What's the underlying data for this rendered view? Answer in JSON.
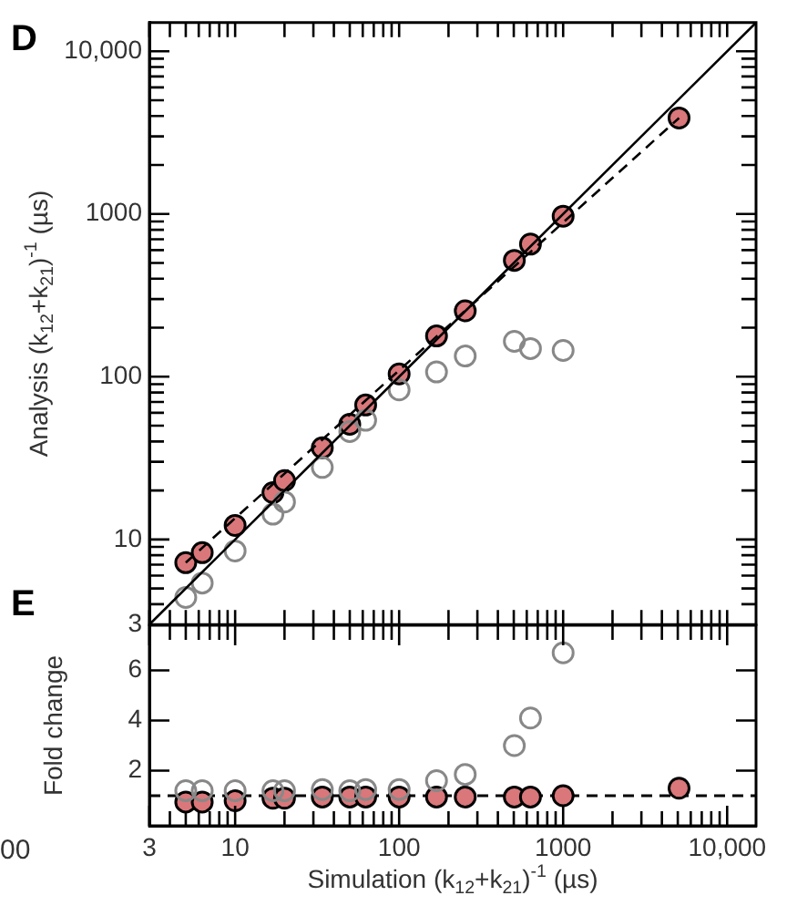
{
  "chart_data": [
    {
      "type": "scatter",
      "ylabel": "Analysis (k$_{12}$+k$_{21}$)$^{-1}$ (µs)",
      "annotations": [
        "D"
      ],
      "log": "xy",
      "grid": false,
      "legend": false,
      "tick_labels": "y",
      "xlim": [
        3,
        15000
      ],
      "ylim": [
        3,
        15000
      ],
      "xticks": [
        {
          "value": 3,
          "label": null
        },
        {
          "value": 4,
          "label": null
        },
        {
          "value": 5,
          "label": null
        },
        {
          "value": 6,
          "label": null
        },
        {
          "value": 7,
          "label": null
        },
        {
          "value": 8,
          "label": null
        },
        {
          "value": 9,
          "label": null
        },
        {
          "value": 10,
          "label": null
        },
        {
          "value": 20,
          "label": null
        },
        {
          "value": 30,
          "label": null
        },
        {
          "value": 40,
          "label": null
        },
        {
          "value": 50,
          "label": null
        },
        {
          "value": 60,
          "label": null
        },
        {
          "value": 70,
          "label": null
        },
        {
          "value": 80,
          "label": null
        },
        {
          "value": 90,
          "label": null
        },
        {
          "value": 100,
          "label": null
        },
        {
          "value": 200,
          "label": null
        },
        {
          "value": 300,
          "label": null
        },
        {
          "value": 400,
          "label": null
        },
        {
          "value": 500,
          "label": null
        },
        {
          "value": 600,
          "label": null
        },
        {
          "value": 700,
          "label": null
        },
        {
          "value": 800,
          "label": null
        },
        {
          "value": 900,
          "label": null
        },
        {
          "value": 1000,
          "label": null
        },
        {
          "value": 2000,
          "label": null
        },
        {
          "value": 3000,
          "label": null
        },
        {
          "value": 4000,
          "label": null
        },
        {
          "value": 5000,
          "label": null
        },
        {
          "value": 6000,
          "label": null
        },
        {
          "value": 7000,
          "label": null
        },
        {
          "value": 8000,
          "label": null
        },
        {
          "value": 9000,
          "label": null
        },
        {
          "value": 10000,
          "label": null
        }
      ],
      "yticks": [
        3,
        {
          "value": 4,
          "label": null
        },
        {
          "value": 5,
          "label": null
        },
        {
          "value": 6,
          "label": null
        },
        {
          "value": 7,
          "label": null
        },
        {
          "value": 8,
          "label": null
        },
        {
          "value": 9,
          "label": null
        },
        10,
        {
          "value": 20,
          "label": null
        },
        {
          "value": 30,
          "label": null
        },
        {
          "value": 40,
          "label": null
        },
        {
          "value": 50,
          "label": null
        },
        {
          "value": 60,
          "label": null
        },
        {
          "value": 70,
          "label": null
        },
        {
          "value": 80,
          "label": null
        },
        {
          "value": 90,
          "label": null
        },
        100,
        {
          "value": 200,
          "label": null
        },
        {
          "value": 300,
          "label": null
        },
        {
          "value": 400,
          "label": null
        },
        {
          "value": 500,
          "label": null
        },
        {
          "value": 600,
          "label": null
        },
        {
          "value": 700,
          "label": null
        },
        {
          "value": 800,
          "label": null
        },
        {
          "value": 900,
          "label": null
        },
        1000,
        {
          "value": 2000,
          "label": null
        },
        {
          "value": 3000,
          "label": null
        },
        {
          "value": 4000,
          "label": null
        },
        {
          "value": 5000,
          "label": null
        },
        {
          "value": 6000,
          "label": null
        },
        {
          "value": 7000,
          "label": null
        },
        {
          "value": 8000,
          "label": null
        },
        {
          "value": 9000,
          "label": null
        },
        {
          "value": 10000,
          "label": "10,000"
        }
      ],
      "x": [
        5,
        6.3,
        10,
        17,
        20,
        34,
        50,
        62.5,
        100,
        169,
        253,
        504,
        632,
        1000,
        5090
      ],
      "series": [
        {
          "type": "line",
          "x": [
            3,
            15000
          ],
          "values": [
            3,
            15000
          ],
          "color": "#000000",
          "line_style": "solid",
          "marker": "none"
        },
        {
          "type": "line",
          "x": [
            5,
            5090
          ],
          "values": [
            7.2,
            3890
          ],
          "color": "#000000",
          "line_style": "dashed",
          "marker": "none"
        },
        {
          "color": "#888888",
          "marker": "circle",
          "x": [
            5,
            6.3,
            10,
            17,
            20,
            34,
            50,
            62.5,
            100,
            169,
            253,
            504,
            632,
            1000
          ],
          "values": [
            4.4,
            5.4,
            8.5,
            14.3,
            17,
            27.7,
            46,
            54,
            83,
            107,
            134,
            165,
            149,
            145
          ]
        },
        {
          "color": "#d9777a",
          "marker": "circle",
          "values": [
            7.2,
            8.3,
            12.2,
            19.4,
            23,
            36.6,
            51,
            67,
            104,
            178,
            254,
            519,
            653,
            970,
            3890
          ]
        }
      ]
    },
    {
      "type": "scatter",
      "xlabel": "Simulation (k$_{12}$+k$_{21}$)$^{-1}$ (µs)",
      "ylabel": "Fold change",
      "annotations": [
        "E",
        "00"
      ],
      "log": "x",
      "grid": false,
      "legend": false,
      "marker": "circle",
      "xlim": [
        3,
        15000
      ],
      "ylim": [
        -0.2,
        7.8
      ],
      "xticks": [
        3,
        {
          "value": 4,
          "label": null
        },
        {
          "value": 5,
          "label": null
        },
        {
          "value": 6,
          "label": null
        },
        {
          "value": 7,
          "label": null
        },
        {
          "value": 8,
          "label": null
        },
        {
          "value": 9,
          "label": null
        },
        10,
        {
          "value": 20,
          "label": null
        },
        {
          "value": 30,
          "label": null
        },
        {
          "value": 40,
          "label": null
        },
        {
          "value": 50,
          "label": null
        },
        {
          "value": 60,
          "label": null
        },
        {
          "value": 70,
          "label": null
        },
        {
          "value": 80,
          "label": null
        },
        {
          "value": 90,
          "label": null
        },
        100,
        {
          "value": 200,
          "label": null
        },
        {
          "value": 300,
          "label": null
        },
        {
          "value": 400,
          "label": null
        },
        {
          "value": 500,
          "label": null
        },
        {
          "value": 600,
          "label": null
        },
        {
          "value": 700,
          "label": null
        },
        {
          "value": 800,
          "label": null
        },
        {
          "value": 900,
          "label": null
        },
        1000,
        {
          "value": 2000,
          "label": null
        },
        {
          "value": 3000,
          "label": null
        },
        {
          "value": 4000,
          "label": null
        },
        {
          "value": 5000,
          "label": null
        },
        {
          "value": 6000,
          "label": null
        },
        {
          "value": 7000,
          "label": null
        },
        {
          "value": 8000,
          "label": null
        },
        {
          "value": 9000,
          "label": null
        },
        {
          "value": 10000,
          "label": "10,000"
        }
      ],
      "yticks": [
        2,
        4,
        6
      ],
      "ref_lines": [
        {
          "axis": "y",
          "value": 1,
          "color": "#000000",
          "line_style": "dashed"
        }
      ],
      "x": [
        5,
        6.3,
        10,
        17,
        20,
        34,
        50,
        62.5,
        100,
        169,
        253,
        504,
        632,
        1000,
        5090
      ],
      "series": [
        {
          "color": "#888888",
          "x": [
            5,
            6.3,
            10,
            17,
            20,
            34,
            50,
            62.5,
            100,
            169,
            253,
            504,
            632,
            1000
          ],
          "values": [
            1.2,
            1.2,
            1.2,
            1.2,
            1.2,
            1.25,
            1.2,
            1.25,
            1.25,
            1.6,
            1.85,
            3.0,
            4.1,
            6.7
          ]
        },
        {
          "color": "#d9777a",
          "values": [
            0.75,
            0.75,
            0.8,
            0.9,
            0.9,
            0.95,
            0.95,
            0.95,
            0.95,
            0.95,
            0.95,
            0.95,
            0.95,
            1.0,
            1.3
          ]
        }
      ]
    }
  ]
}
